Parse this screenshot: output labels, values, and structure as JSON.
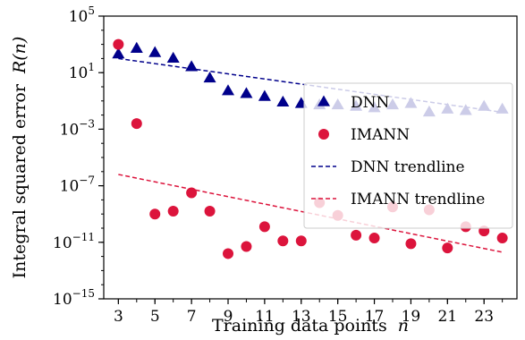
{
  "chart_data": {
    "type": "scatter",
    "xlabel": "Training data points",
    "xlabel_var": "n",
    "ylabel": "Integral squared error",
    "ylabel_func": "R(n)",
    "y_scale": "log",
    "xlim": [
      2.2,
      24.8
    ],
    "ylim_log10": [
      -15,
      5
    ],
    "x_ticks": [
      3,
      5,
      7,
      9,
      11,
      13,
      15,
      17,
      19,
      21,
      23
    ],
    "y_ticks_exp": [
      5,
      1,
      -3,
      -7,
      -11,
      -15
    ],
    "y_tick_base": "10",
    "grid": false,
    "legend_position": "right",
    "series": [
      {
        "name": "DNN",
        "marker": "triangle",
        "color": "#00008B",
        "x": [
          3,
          4,
          5,
          6,
          7,
          8,
          9,
          10,
          11,
          12,
          13,
          14,
          15,
          16,
          17,
          18,
          19,
          20,
          21,
          22,
          23,
          24
        ],
        "y_log10": [
          2.3,
          2.7,
          2.4,
          2.0,
          1.4,
          0.6,
          -0.3,
          -0.5,
          -0.7,
          -1.1,
          -1.2,
          -1.3,
          -1.3,
          -1.4,
          -1.5,
          -1.3,
          -1.2,
          -1.8,
          -1.6,
          -1.7,
          -1.4,
          -1.6
        ]
      },
      {
        "name": "IMANN",
        "marker": "circle",
        "color": "#DC143C",
        "x": [
          3,
          4,
          5,
          6,
          7,
          8,
          9,
          10,
          11,
          12,
          13,
          14,
          15,
          16,
          17,
          18,
          19,
          20,
          21,
          22,
          23,
          24
        ],
        "y_log10": [
          3.0,
          -2.6,
          -9.0,
          -8.8,
          -7.5,
          -8.8,
          -11.8,
          -11.3,
          -9.9,
          -10.9,
          -10.9,
          -8.2,
          -9.1,
          -10.5,
          -10.7,
          -8.5,
          -11.1,
          -8.7,
          -11.4,
          -9.9,
          -10.2,
          -10.7
        ]
      }
    ],
    "trendlines": [
      {
        "name": "DNN trendline",
        "color": "#00008B",
        "x": [
          3,
          24
        ],
        "y_log10": [
          2.0,
          -1.8
        ]
      },
      {
        "name": "IMANN trendline",
        "color": "#DC143C",
        "x": [
          3,
          24
        ],
        "y_log10": [
          -6.2,
          -11.7
        ]
      }
    ]
  }
}
